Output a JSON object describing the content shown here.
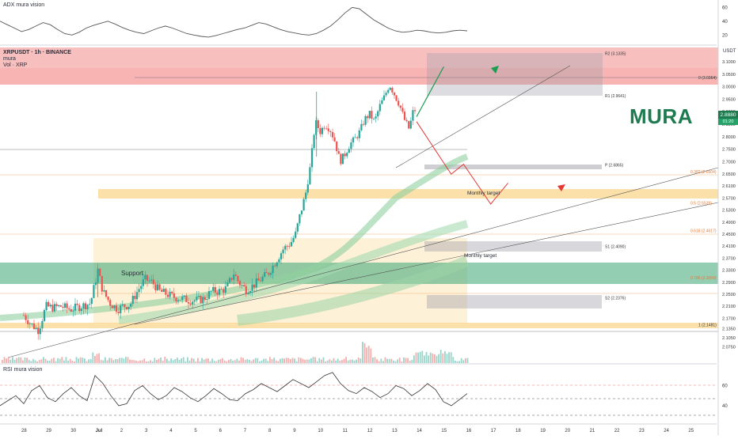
{
  "header": {
    "adx_title": "ADX mura vision",
    "pair_line": "XRPUSDT · 1h · BINANCE",
    "sub_line_1": "mura",
    "sub_line_2": "Vol · XRP",
    "rsi_title": "RSI mura vision",
    "currency": "USDT"
  },
  "brand": {
    "watermark": "MURA",
    "color": "#1e7a4f"
  },
  "current_price": {
    "value": "2.8880",
    "countdown": "01:20"
  },
  "colors": {
    "up": "#26a69a",
    "down": "#ef5350",
    "resistance_zone": "#f28b8b",
    "support_zone": "#3aa574",
    "target_zone": "#f9d68d",
    "pivot_box": "#9e9ea8",
    "arrow_up": "#1b9e52",
    "arrow_down": "#e53935"
  },
  "annotations": {
    "support": "Support",
    "monthly_target_1": "Monthly target",
    "monthly_target_2": "Monthly target"
  },
  "chart_data": [
    {
      "type": "line",
      "title": "ADX mura vision",
      "y_ticks": [
        "60",
        "40",
        "20"
      ],
      "ylim": [
        10,
        65
      ],
      "series": [
        {
          "name": "ADX",
          "values": [
            40,
            35,
            30,
            25,
            28,
            33,
            38,
            35,
            28,
            22,
            20,
            24,
            30,
            34,
            37,
            40,
            36,
            31,
            27,
            24,
            22,
            26,
            30,
            33,
            30,
            26,
            22,
            20,
            18,
            17,
            19,
            22,
            25,
            28,
            30,
            34,
            38,
            36,
            32,
            28,
            25,
            23,
            21,
            20,
            22,
            27,
            33,
            42,
            52,
            60,
            58,
            50,
            42,
            36,
            30,
            26,
            24,
            25,
            27,
            26,
            24,
            23,
            24,
            26,
            27,
            26
          ]
        }
      ]
    },
    {
      "type": "candlestick",
      "title": "XRPUSDT · 1h · BINANCE",
      "y_ticks": [
        "3.1000",
        "3.0500",
        "3.0000",
        "2.9500",
        "2.9000",
        "2.8500",
        "2.8000",
        "2.7500",
        "2.7000",
        "2.6500",
        "2.6100",
        "2.5700",
        "2.5300",
        "2.4900",
        "2.4500",
        "2.4100",
        "2.3700",
        "2.3300",
        "2.2900",
        "2.2500",
        "2.2100",
        "2.1700",
        "2.1350",
        "2.1050",
        "2.0750"
      ],
      "x_ticks": [
        "28",
        "29",
        "30",
        "Jul",
        "2",
        "3",
        "4",
        "5",
        "6",
        "7",
        "8",
        "9",
        "10",
        "11",
        "12",
        "13",
        "14",
        "15",
        "16",
        "17",
        "18",
        "19",
        "20",
        "21",
        "22",
        "23",
        "24",
        "25"
      ],
      "close_path": [
        {
          "x": 0,
          "y": 2.18
        },
        {
          "x": 0.3,
          "y": 2.15
        },
        {
          "x": 0.6,
          "y": 2.13
        },
        {
          "x": 0.9,
          "y": 2.21
        },
        {
          "x": 1.2,
          "y": 2.205
        },
        {
          "x": 1.5,
          "y": 2.21
        },
        {
          "x": 1.9,
          "y": 2.2
        },
        {
          "x": 2.3,
          "y": 2.21
        },
        {
          "x": 2.7,
          "y": 2.22
        },
        {
          "x": 3.0,
          "y": 2.33
        },
        {
          "x": 3.2,
          "y": 2.26
        },
        {
          "x": 3.5,
          "y": 2.22
        },
        {
          "x": 3.8,
          "y": 2.2
        },
        {
          "x": 4.0,
          "y": 2.21
        },
        {
          "x": 4.3,
          "y": 2.215
        },
        {
          "x": 4.6,
          "y": 2.26
        },
        {
          "x": 4.9,
          "y": 2.3
        },
        {
          "x": 5.2,
          "y": 2.29
        },
        {
          "x": 5.5,
          "y": 2.26
        },
        {
          "x": 5.8,
          "y": 2.25
        },
        {
          "x": 6.1,
          "y": 2.24
        },
        {
          "x": 6.4,
          "y": 2.235
        },
        {
          "x": 6.7,
          "y": 2.23
        },
        {
          "x": 7.0,
          "y": 2.23
        },
        {
          "x": 7.3,
          "y": 2.235
        },
        {
          "x": 7.6,
          "y": 2.26
        },
        {
          "x": 7.9,
          "y": 2.26
        },
        {
          "x": 8.2,
          "y": 2.27
        },
        {
          "x": 8.5,
          "y": 2.32
        },
        {
          "x": 8.7,
          "y": 2.29
        },
        {
          "x": 9.0,
          "y": 2.265
        },
        {
          "x": 9.3,
          "y": 2.28
        },
        {
          "x": 9.6,
          "y": 2.3
        },
        {
          "x": 9.9,
          "y": 2.32
        },
        {
          "x": 10.2,
          "y": 2.36
        },
        {
          "x": 10.5,
          "y": 2.4
        },
        {
          "x": 10.8,
          "y": 2.42
        },
        {
          "x": 11.0,
          "y": 2.45
        },
        {
          "x": 11.2,
          "y": 2.52
        },
        {
          "x": 11.4,
          "y": 2.58
        },
        {
          "x": 11.6,
          "y": 2.68
        },
        {
          "x": 11.8,
          "y": 2.86
        },
        {
          "x": 12.0,
          "y": 2.82
        },
        {
          "x": 12.2,
          "y": 2.85
        },
        {
          "x": 12.4,
          "y": 2.83
        },
        {
          "x": 12.6,
          "y": 2.78
        },
        {
          "x": 12.8,
          "y": 2.7
        },
        {
          "x": 13.0,
          "y": 2.73
        },
        {
          "x": 13.2,
          "y": 2.77
        },
        {
          "x": 13.4,
          "y": 2.79
        },
        {
          "x": 13.6,
          "y": 2.82
        },
        {
          "x": 13.8,
          "y": 2.87
        },
        {
          "x": 14.0,
          "y": 2.89
        },
        {
          "x": 14.2,
          "y": 2.86
        },
        {
          "x": 14.4,
          "y": 2.92
        },
        {
          "x": 14.6,
          "y": 2.96
        },
        {
          "x": 14.8,
          "y": 3.01
        },
        {
          "x": 15.0,
          "y": 2.97
        },
        {
          "x": 15.2,
          "y": 2.93
        },
        {
          "x": 15.4,
          "y": 2.87
        },
        {
          "x": 15.6,
          "y": 2.83
        },
        {
          "x": 15.8,
          "y": 2.92
        },
        {
          "x": 15.9,
          "y": 2.88
        }
      ],
      "levels": [
        {
          "label": "R2 (3.1335)",
          "value": 3.1335
        },
        {
          "label": "0 (3.0364)",
          "value": 3.0364
        },
        {
          "label": "R1 (2.9641)",
          "value": 2.9641
        },
        {
          "label": "P (2.6865)",
          "value": 2.6865
        },
        {
          "label": "0.382 (2.6604)",
          "value": 2.6604
        },
        {
          "label": "0.5 (2.5539)",
          "value": 2.5539
        },
        {
          "label": "0.618 (2.4617)",
          "value": 2.4617
        },
        {
          "label": "S1 (2.4090)",
          "value": 2.409
        },
        {
          "label": "0.786 (2.3050)",
          "value": 2.305
        },
        {
          "label": "S2 (2.2376)",
          "value": 2.2376
        },
        {
          "label": "1 (2.1481)",
          "value": 2.1481
        }
      ],
      "projection_up": [
        {
          "x": 15.9,
          "y": 2.88
        },
        {
          "x": 17.0,
          "y": 3.08
        }
      ],
      "projection_down": [
        {
          "x": 15.9,
          "y": 2.86
        },
        {
          "x": 17.3,
          "y": 2.65
        },
        {
          "x": 17.8,
          "y": 2.69
        },
        {
          "x": 18.9,
          "y": 2.55
        },
        {
          "x": 19.6,
          "y": 2.62
        }
      ],
      "zones": [
        {
          "name": "resistance",
          "from": 3.0,
          "to": 3.12
        },
        {
          "name": "monthly-target-upper",
          "from": 2.575,
          "to": 2.6
        },
        {
          "name": "monthly-target-lower",
          "from": 2.165,
          "to": 2.175
        },
        {
          "name": "support",
          "from": 2.285,
          "to": 2.335
        }
      ]
    },
    {
      "type": "line",
      "title": "RSI mura vision",
      "y_ticks": [
        "60",
        "40"
      ],
      "ylim": [
        25,
        80
      ],
      "series": [
        {
          "name": "RSI",
          "values": [
            40,
            45,
            50,
            42,
            55,
            60,
            48,
            44,
            52,
            58,
            50,
            45,
            70,
            62,
            50,
            40,
            42,
            55,
            60,
            52,
            46,
            50,
            58,
            54,
            48,
            44,
            50,
            57,
            52,
            46,
            45,
            52,
            56,
            62,
            58,
            54,
            60,
            66,
            62,
            58,
            64,
            70,
            73,
            62,
            55,
            52,
            58,
            54,
            48,
            52,
            60,
            57,
            50,
            55,
            62,
            56,
            44,
            40,
            46,
            52
          ]
        }
      ]
    }
  ]
}
